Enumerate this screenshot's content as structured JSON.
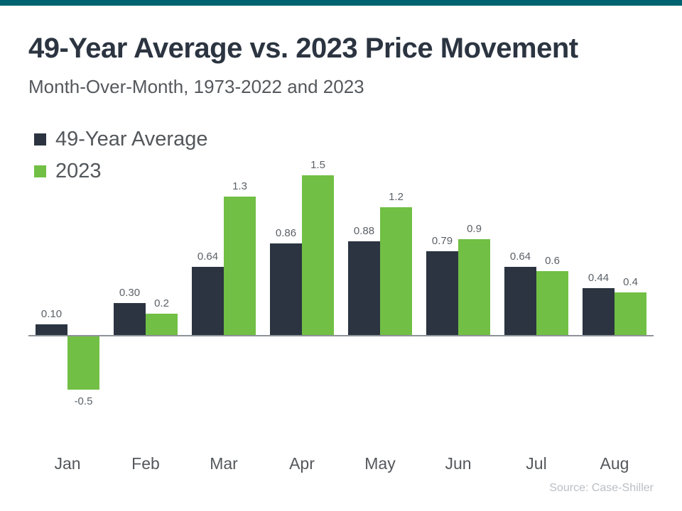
{
  "page": {
    "title": "49-Year Average vs. 2023 Price Movement",
    "subtitle": "Month-Over-Month, 1973-2022 and 2023",
    "source": "Source: Case-Shiller"
  },
  "colors": {
    "top_strip": "#006470",
    "axis_line": "#8d9399",
    "dark_series": "#2b3440",
    "green_series": "#71bf44"
  },
  "chart_data": {
    "type": "bar",
    "title": "49-Year Average vs. 2023 Price Movement",
    "subtitle": "Month-Over-Month, 1973-2022 and 2023",
    "categories": [
      "Jan",
      "Feb",
      "Mar",
      "Apr",
      "May",
      "Jun",
      "Jul",
      "Aug"
    ],
    "series": [
      {
        "key": "avg",
        "name": "49-Year Average",
        "color": "#2b3440",
        "values": [
          0.1,
          0.3,
          0.64,
          0.86,
          0.88,
          0.79,
          0.64,
          0.44
        ],
        "labels": [
          "0.10",
          "0.30",
          "0.64",
          "0.86",
          "0.88",
          "0.79",
          "0.64",
          "0.44"
        ]
      },
      {
        "key": "y2023",
        "name": "2023",
        "color": "#71bf44",
        "values": [
          -0.5,
          0.2,
          1.3,
          1.5,
          1.2,
          0.9,
          0.6,
          0.4
        ],
        "labels": [
          "-0.5",
          "0.2",
          "1.3",
          "1.5",
          "1.2",
          "0.9",
          "0.6",
          "0.4"
        ]
      }
    ],
    "legend_position": "top-left",
    "xlabel": "",
    "ylabel": "",
    "ylim": [
      -0.75,
      1.65
    ],
    "grid": false,
    "value_labels": true
  }
}
